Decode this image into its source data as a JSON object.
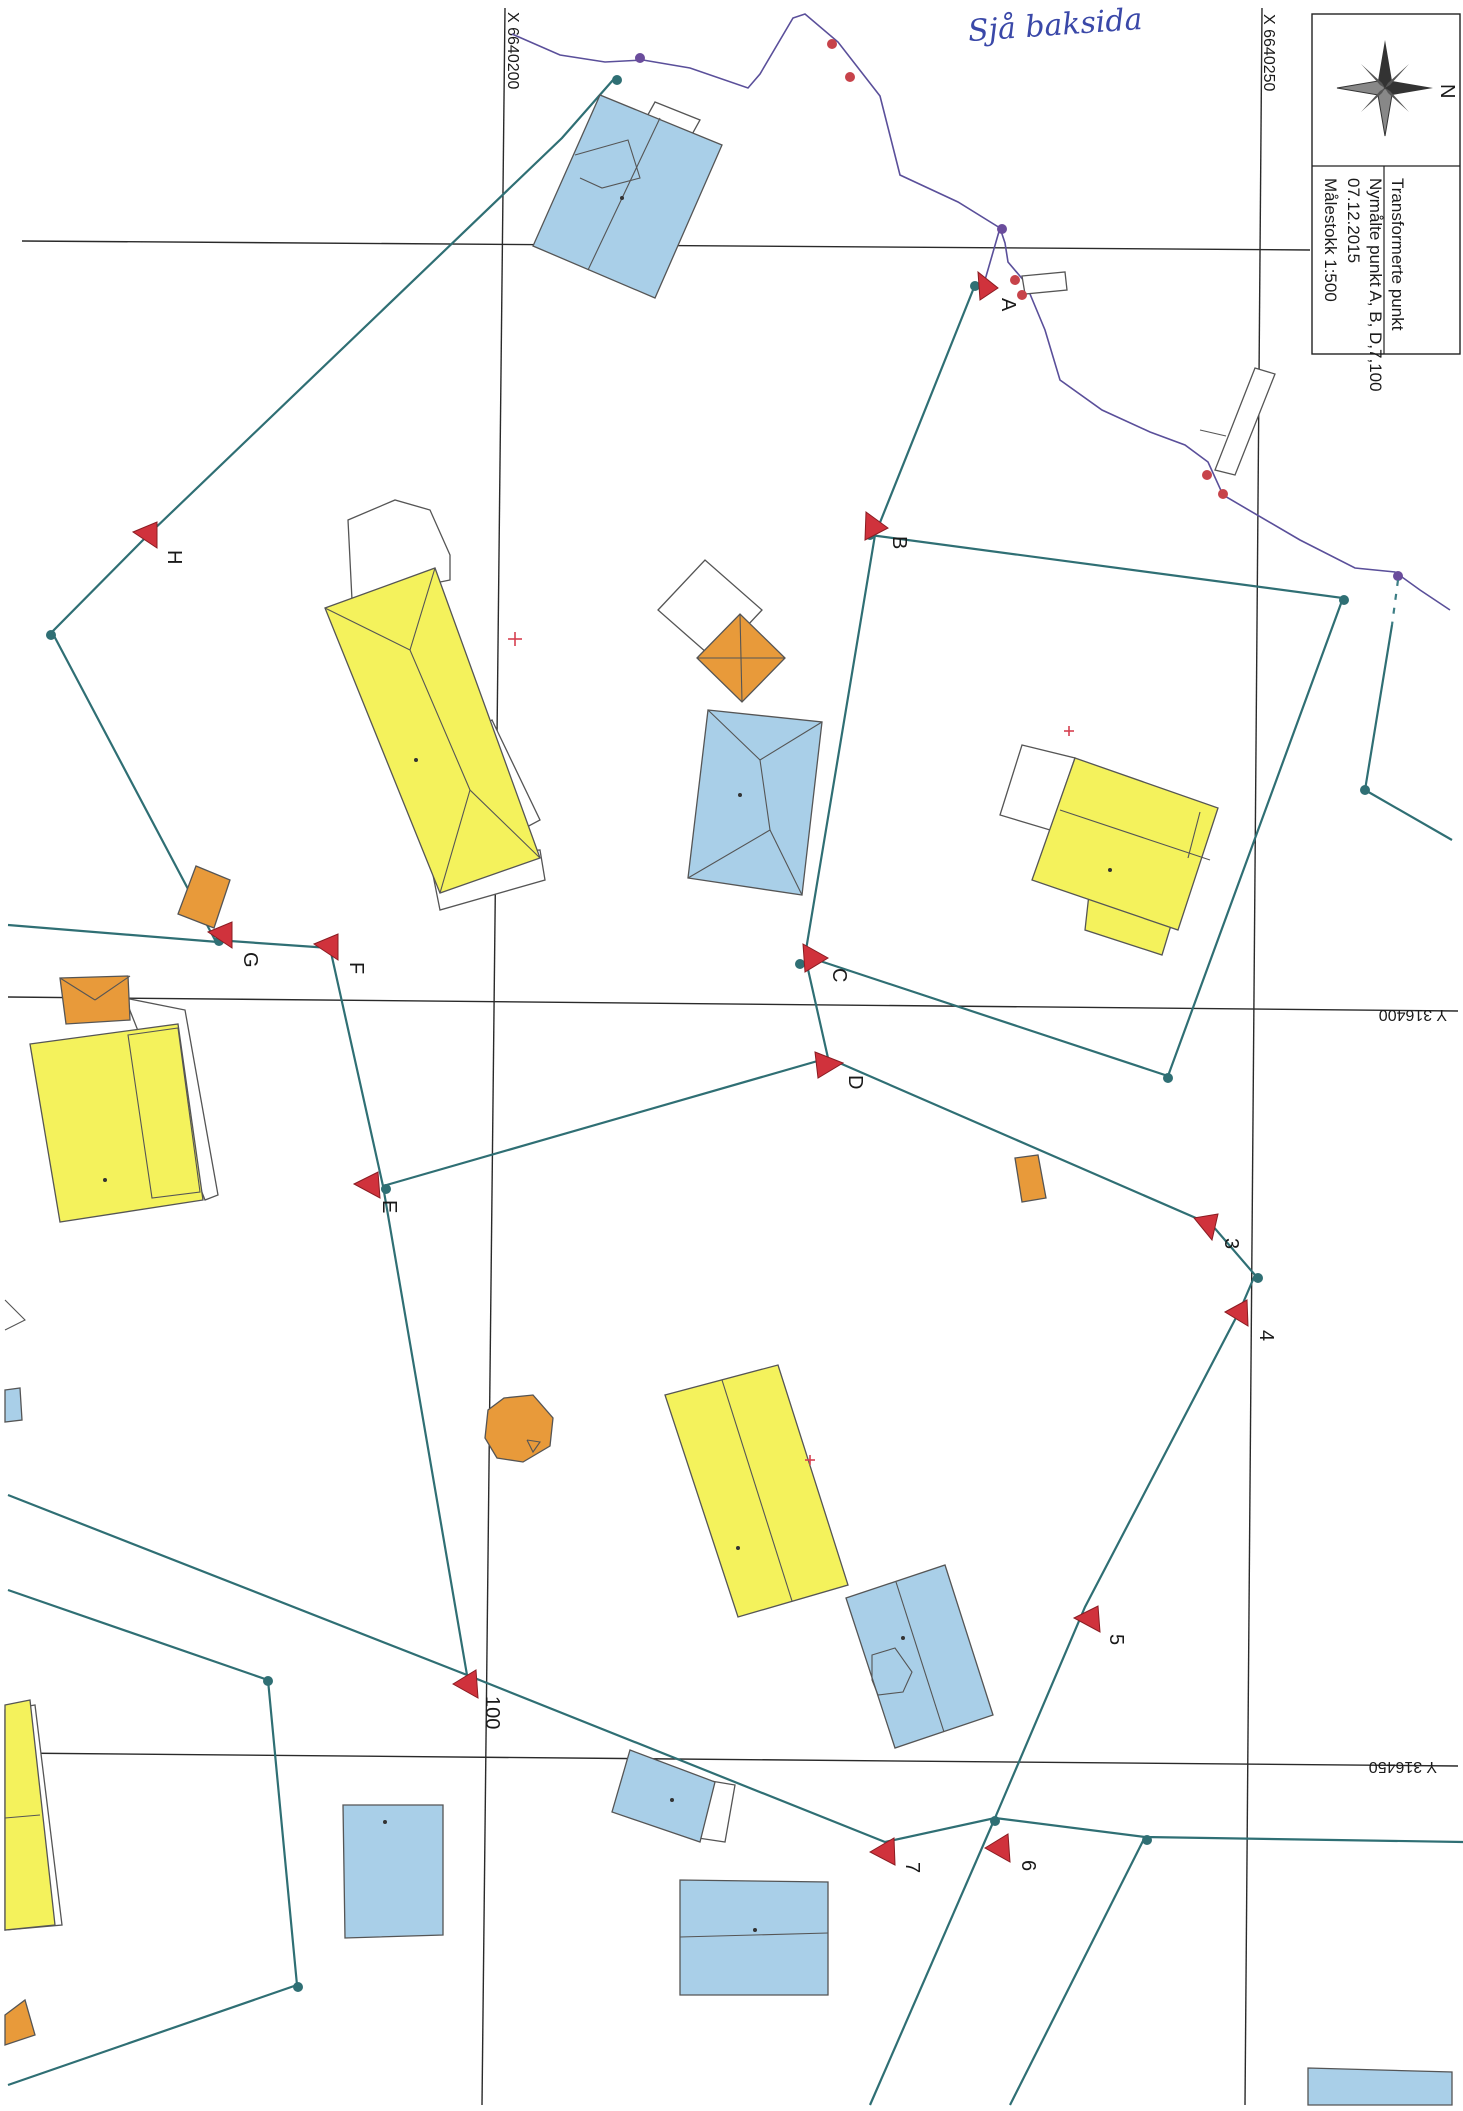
{
  "handwritten_note": "Sjå baksida",
  "info_box": {
    "north_label": "N",
    "lines": [
      "Transformerte punkt",
      "Nymålte punkt A, B, D,7,100",
      "07.12.2015",
      "Målestokk 1:500"
    ]
  },
  "grid_labels": {
    "x_left": "X 6640200",
    "x_right": "X 6640250",
    "y_upper": "Y 316400",
    "y_lower": "Y 316450"
  },
  "points": [
    {
      "label": "A"
    },
    {
      "label": "B"
    },
    {
      "label": "C"
    },
    {
      "label": "D"
    },
    {
      "label": "E"
    },
    {
      "label": "F"
    },
    {
      "label": "G"
    },
    {
      "label": "H"
    },
    {
      "label": "3"
    },
    {
      "label": "4"
    },
    {
      "label": "5"
    },
    {
      "label": "6"
    },
    {
      "label": "7"
    },
    {
      "label": "100"
    }
  ],
  "colors": {
    "residential_building": "#f4f25c",
    "other_building": "#a9cfe8",
    "outbuilding": "#e89a3a",
    "boundary_line": "#2f6f74",
    "new_point_marker": "#d0323c",
    "creek": "#5a4f9a"
  }
}
